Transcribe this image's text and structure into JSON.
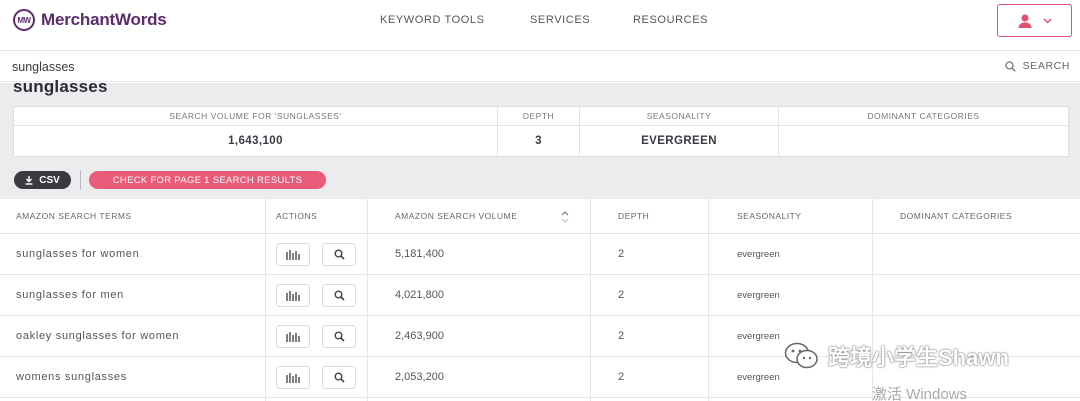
{
  "brand": {
    "name": "MerchantWords",
    "mark": "MW"
  },
  "nav": {
    "links": [
      "KEYWORD TOOLS",
      "SERVICES",
      "RESOURCES"
    ]
  },
  "search": {
    "value": "sunglasses",
    "button_label": "SEARCH"
  },
  "summary": {
    "title": "sunglasses",
    "headers": {
      "volume": "SEARCH VOLUME FOR 'SUNGLASSES'",
      "depth": "DEPTH",
      "seasonality": "SEASONALITY",
      "categories": "DOMINANT CATEGORIES"
    },
    "values": {
      "volume": "1,643,100",
      "depth": "3",
      "seasonality": "EVERGREEN",
      "categories": ""
    }
  },
  "actions": {
    "csv_label": "CSV",
    "check_label": "CHECK FOR PAGE 1 SEARCH RESULTS"
  },
  "table": {
    "columns": {
      "term": "AMAZON SEARCH TERMS",
      "actions": "ACTIONS",
      "volume": "AMAZON SEARCH VOLUME",
      "depth": "DEPTH",
      "seasonality": "SEASONALITY",
      "categories": "DOMINANT CATEGORIES"
    },
    "rows": [
      {
        "term": "sunglasses for women",
        "volume": "5,181,400",
        "depth": "2",
        "seasonality": "evergreen",
        "categories": ""
      },
      {
        "term": "sunglasses for men",
        "volume": "4,021,800",
        "depth": "2",
        "seasonality": "evergreen",
        "categories": ""
      },
      {
        "term": "oakley sunglasses for women",
        "volume": "2,463,900",
        "depth": "2",
        "seasonality": "evergreen",
        "categories": ""
      },
      {
        "term": "womens sunglasses",
        "volume": "2,053,200",
        "depth": "2",
        "seasonality": "evergreen",
        "categories": ""
      }
    ]
  },
  "overlay": {
    "wechat_watermark": "跨境小学生Shawn",
    "activate_windows": "激活 Windows"
  },
  "colors": {
    "brand": "#5c2d6e",
    "accent": "#e95b78",
    "dark_button": "#3a3b40"
  },
  "icons": [
    "user-icon",
    "chevron-down-icon",
    "search-icon",
    "download-icon",
    "bar-chart-icon",
    "sort-icon",
    "wechat-icon"
  ]
}
